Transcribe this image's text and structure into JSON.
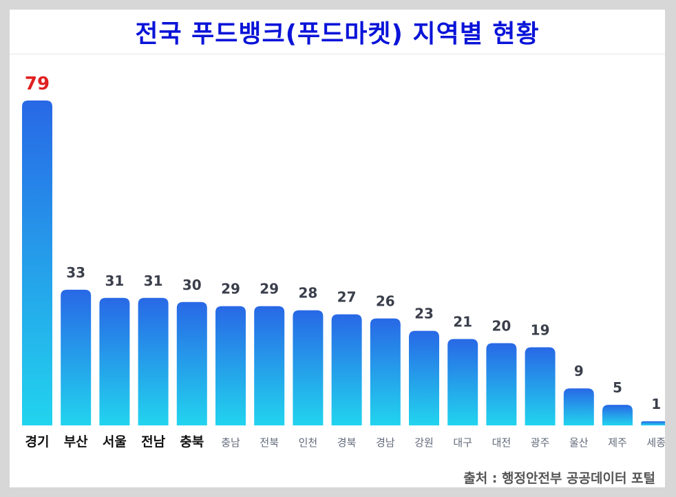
{
  "title": "전국 푸드뱅크(푸드마켓) 지역별 현황",
  "source": "출처 : 행정안전부 공공데이터 포털",
  "colors": {
    "title": "#0a14d8",
    "bar_top": "#2868e6",
    "bar_bottom": "#22d4ee",
    "max_label": "#e02020",
    "value_label": "#3a3f4b"
  },
  "chart_data": {
    "type": "bar",
    "title": "전국 푸드뱅크(푸드마켓) 지역별 현황",
    "categories": [
      "경기",
      "부산",
      "서울",
      "전남",
      "충북",
      "충남",
      "전북",
      "인천",
      "경북",
      "경남",
      "강원",
      "대구",
      "대전",
      "광주",
      "울산",
      "제주",
      "세종"
    ],
    "values": [
      79,
      33,
      31,
      31,
      30,
      29,
      29,
      28,
      27,
      26,
      23,
      21,
      20,
      19,
      9,
      5,
      1
    ],
    "highlighted_categories": [
      "경기",
      "부산",
      "서울",
      "전남",
      "충북"
    ],
    "xlabel": "",
    "ylabel": "",
    "ylim": [
      0,
      79
    ],
    "grid": false,
    "legend": "none"
  }
}
